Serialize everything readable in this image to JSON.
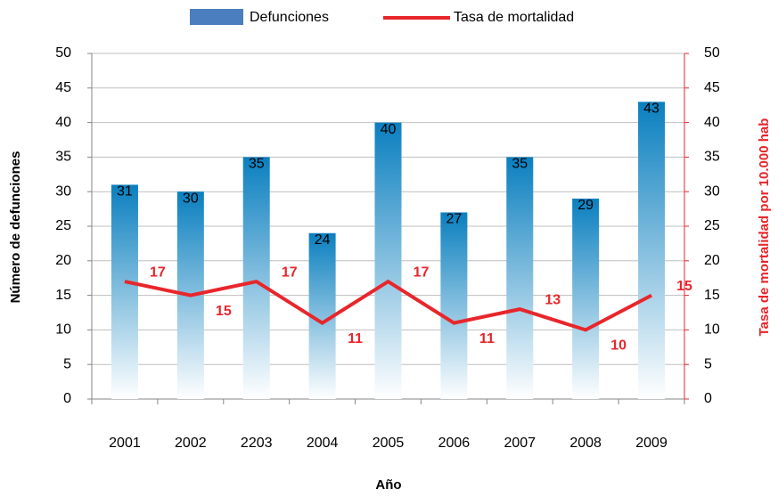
{
  "chart_data": {
    "type": "bar",
    "categories": [
      "2001",
      "2002",
      "2203",
      "2004",
      "2005",
      "2006",
      "2007",
      "2008",
      "2009"
    ],
    "series": [
      {
        "name": "Defunciones",
        "type": "bar",
        "color": "#0a7fbf",
        "values": [
          31,
          30,
          35,
          24,
          40,
          27,
          35,
          29,
          43
        ]
      },
      {
        "name": "Tasa de mortalidad",
        "type": "line",
        "axis": "y2",
        "color": "#e8262b",
        "values": [
          17,
          15,
          17,
          11,
          17,
          11,
          13,
          10,
          15
        ]
      }
    ],
    "x_label": "Año",
    "y_label": "Número de defunciones",
    "y2_label": "Tasa de mortalidad  por 10.000 hab",
    "ylim": [
      0,
      50
    ],
    "yticks": [
      0,
      5,
      10,
      15,
      20,
      25,
      30,
      35,
      40,
      45,
      50
    ],
    "y2lim": [
      0,
      50
    ],
    "y2ticks": [
      0,
      5,
      10,
      15,
      20,
      25,
      30,
      35,
      40,
      45,
      50
    ],
    "grid": true,
    "legend": "top"
  }
}
